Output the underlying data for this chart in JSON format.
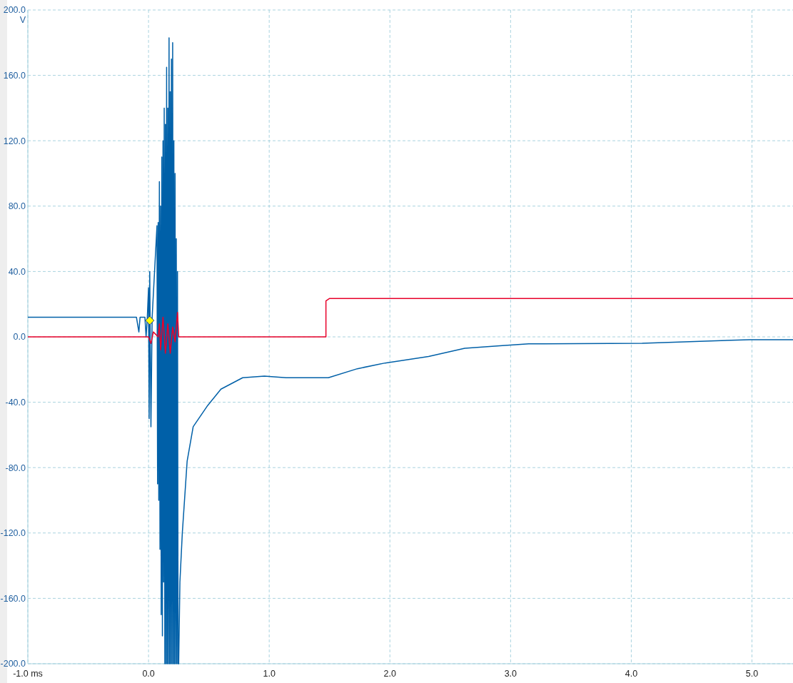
{
  "chart_data": {
    "type": "line",
    "ylabel": "V",
    "xlim": [
      -1,
      5.34
    ],
    "ylim": [
      -200,
      200
    ],
    "xticks": [
      {
        "value": -1,
        "label": "-1.0 ms"
      },
      {
        "value": 0,
        "label": "0.0"
      },
      {
        "value": 1,
        "label": "1.0"
      },
      {
        "value": 2,
        "label": "2.0"
      },
      {
        "value": 3,
        "label": "3.0"
      },
      {
        "value": 4,
        "label": "4.0"
      },
      {
        "value": 5,
        "label": "5.0"
      }
    ],
    "yticks": [
      {
        "value": -200,
        "label": "-200.0"
      },
      {
        "value": -160,
        "label": "-160.0"
      },
      {
        "value": -120,
        "label": "-120.0"
      },
      {
        "value": -80,
        "label": "-80.0"
      },
      {
        "value": -40,
        "label": "-40.0"
      },
      {
        "value": 0,
        "label": "0.0"
      },
      {
        "value": 40,
        "label": "40.0"
      },
      {
        "value": 80,
        "label": "80.0"
      },
      {
        "value": 120,
        "label": "120.0"
      },
      {
        "value": 160,
        "label": "160.0"
      },
      {
        "value": 200,
        "label": "200.0"
      }
    ],
    "grid": true,
    "line_style": "solid",
    "series": [
      {
        "color": "#0060a8",
        "x": [
          -1,
          -0.1,
          -0.08,
          -0.07,
          -0.03,
          -0.02,
          -0.01,
          0,
          0.005,
          0.01,
          0.02,
          0.03,
          0.07,
          0.075,
          0.08,
          0.085,
          0.09,
          0.095,
          0.1,
          0.105,
          0.11,
          0.115,
          0.12,
          0.125,
          0.13,
          0.135,
          0.14,
          0.145,
          0.15,
          0.155,
          0.16,
          0.165,
          0.17,
          0.175,
          0.18,
          0.185,
          0.19,
          0.195,
          0.2,
          0.205,
          0.21,
          0.215,
          0.22,
          0.225,
          0.23,
          0.235,
          0.24,
          0.245,
          0.25,
          0.26,
          0.28,
          0.32,
          0.37,
          0.49,
          0.6,
          0.78,
          0.96,
          1.14,
          1.49,
          1.73,
          1.96,
          2.32,
          2.62,
          2.91,
          3.15,
          4.09,
          4.98,
          5.34
        ],
        "values": [
          12,
          12,
          3,
          12,
          12,
          0,
          12,
          30,
          -50,
          40,
          -55,
          12,
          68,
          -90,
          70,
          -100,
          95,
          -130,
          80,
          -170,
          110,
          -183,
          120,
          -150,
          140,
          -200,
          130,
          -200,
          165,
          -200,
          140,
          -200,
          183,
          -200,
          150,
          -200,
          170,
          -200,
          180,
          -200,
          120,
          -200,
          100,
          -200,
          60,
          -200,
          40,
          -200,
          -200,
          -150,
          -120,
          -76,
          -55,
          -42,
          -32,
          -25,
          -24,
          -25,
          -25,
          -19.5,
          -16,
          -12,
          -7,
          -5.5,
          -4.3,
          -3.9,
          -1.7,
          -1.7
        ]
      },
      {
        "color": "#e8002a",
        "x": [
          -1,
          0,
          0.02,
          0.04,
          0.08,
          0.09,
          0.1,
          0.12,
          0.14,
          0.16,
          0.18,
          0.2,
          0.22,
          0.24,
          0.25,
          1.47,
          1.47,
          1.5,
          5.34
        ],
        "values": [
          0,
          0,
          -4,
          3,
          0,
          8,
          -8,
          12,
          -10,
          8,
          -10,
          6,
          -3,
          15,
          0,
          0,
          22,
          23.5,
          23.5
        ]
      }
    ]
  }
}
